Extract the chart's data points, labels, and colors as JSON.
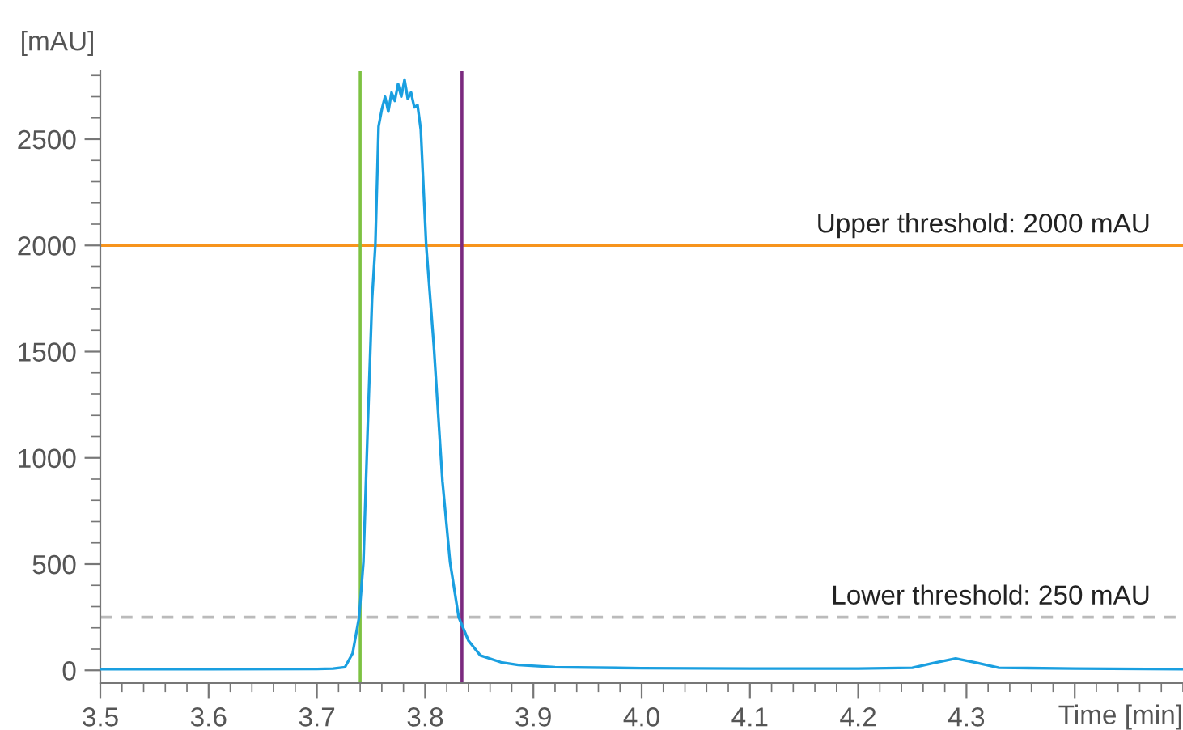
{
  "chart_data": {
    "type": "line",
    "xlabel": "Time [min]",
    "ylabel": "[mAU]",
    "xlim": [
      3.5,
      4.5
    ],
    "ylim": [
      -60,
      2820
    ],
    "xticks": [
      3.5,
      3.6,
      3.7,
      3.8,
      3.9,
      {
        "value": 4.0,
        "label": "4.0"
      },
      4.1,
      4.2,
      4.3,
      {
        "value": 4.4,
        "label": null
      }
    ],
    "yticks": [
      0,
      500,
      1000,
      1500,
      2000,
      2500
    ],
    "grid": false,
    "legend": false,
    "marker": "none",
    "line_style": "solid",
    "series": [
      {
        "color": "#1a9fe0",
        "x": [
          3.5,
          3.6,
          3.7,
          3.715,
          3.726,
          3.733,
          3.739,
          3.743,
          3.747,
          3.751,
          3.754,
          3.757,
          3.76,
          3.763,
          3.766,
          3.769,
          3.772,
          3.775,
          3.778,
          3.781,
          3.784,
          3.787,
          3.79,
          3.793,
          3.796,
          3.801,
          3.808,
          3.816,
          3.823,
          3.831,
          3.84,
          3.851,
          3.87,
          3.886,
          3.92,
          4.0,
          4.1,
          4.2,
          4.25,
          4.27,
          4.29,
          4.31,
          4.33,
          4.4,
          4.5
        ],
        "values": [
          5,
          5,
          6,
          8,
          15,
          80,
          250,
          510,
          1150,
          1750,
          2000,
          2560,
          2640,
          2700,
          2630,
          2720,
          2680,
          2760,
          2700,
          2780,
          2690,
          2720,
          2650,
          2660,
          2545,
          2000,
          1530,
          890,
          510,
          250,
          140,
          70,
          38,
          25,
          15,
          10,
          8,
          8,
          12,
          35,
          56,
          35,
          12,
          8,
          5
        ]
      }
    ],
    "ref_lines": [
      {
        "axis": "y",
        "value": 2000,
        "label": "Upper threshold: 2000 mAU",
        "color": "#f7941d",
        "line_style": "solid"
      },
      {
        "axis": "y",
        "value": 250,
        "label": "Lower threshold: 250 mAU",
        "color": "#bbbbbb",
        "line_style": "dashed"
      },
      {
        "axis": "x",
        "value": 3.74,
        "color": "#7dc242",
        "line_style": "solid"
      },
      {
        "axis": "x",
        "value": 3.834,
        "color": "#7b2a7f",
        "line_style": "solid"
      }
    ]
  }
}
